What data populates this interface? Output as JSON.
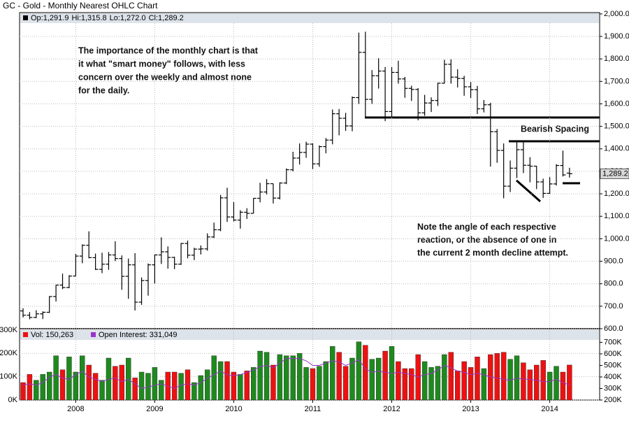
{
  "chart_data": {
    "type": "ohlc",
    "title": "GC - Gold - Monthly Nearest OHLC Chart",
    "legend_labels": [
      "Op:1,291.9",
      "Hi:1,315.8",
      "Lo:1,272.0",
      "Cl:1,289.2"
    ],
    "last_price_label": "1,289.2",
    "categories": [
      null,
      null,
      null,
      null,
      null,
      null,
      null,
      null,
      "2008",
      null,
      null,
      null,
      null,
      null,
      null,
      null,
      null,
      null,
      null,
      null,
      "2009",
      null,
      null,
      null,
      null,
      null,
      null,
      null,
      null,
      null,
      null,
      null,
      "2010",
      null,
      null,
      null,
      null,
      null,
      null,
      null,
      null,
      null,
      null,
      null,
      "2011",
      null,
      null,
      null,
      null,
      null,
      null,
      null,
      null,
      null,
      null,
      null,
      "2012",
      null,
      null,
      null,
      null,
      null,
      null,
      null,
      null,
      null,
      null,
      null,
      "2013",
      null,
      null,
      null,
      null,
      null,
      null,
      null,
      null,
      null,
      null,
      null,
      "2014",
      null,
      null,
      null
    ],
    "ohlc": [
      [
        679,
        691,
        650,
        660
      ],
      [
        660,
        674,
        642,
        650
      ],
      [
        650,
        682,
        647,
        666
      ],
      [
        666,
        677,
        643,
        673
      ],
      [
        673,
        745,
        670,
        743
      ],
      [
        743,
        795,
        721,
        794
      ],
      [
        794,
        845,
        776,
        783
      ],
      [
        783,
        838,
        780,
        834
      ],
      [
        834,
        933,
        834,
        923
      ],
      [
        923,
        975,
        891,
        971
      ],
      [
        971,
        1033,
        913,
        916
      ],
      [
        916,
        934,
        861,
        864
      ],
      [
        864,
        938,
        847,
        887
      ],
      [
        887,
        941,
        862,
        928
      ],
      [
        928,
        989,
        901,
        912
      ],
      [
        912,
        926,
        773,
        833
      ],
      [
        833,
        912,
        733,
        884
      ],
      [
        884,
        936,
        681,
        718
      ],
      [
        718,
        828,
        706,
        814
      ],
      [
        814,
        890,
        747,
        884
      ],
      [
        884,
        930,
        801,
        928
      ],
      [
        928,
        1006,
        888,
        942
      ],
      [
        942,
        966,
        867,
        917
      ],
      [
        917,
        920,
        865,
        887
      ],
      [
        887,
        981,
        884,
        979
      ],
      [
        979,
        992,
        913,
        927
      ],
      [
        927,
        960,
        905,
        954
      ],
      [
        954,
        970,
        930,
        955
      ],
      [
        955,
        1024,
        947,
        1008
      ],
      [
        1008,
        1072,
        1003,
        1040
      ],
      [
        1040,
        1195,
        1034,
        1182
      ],
      [
        1182,
        1227,
        1075,
        1097
      ],
      [
        1097,
        1163,
        1077,
        1083
      ],
      [
        1083,
        1127,
        1045,
        1118
      ],
      [
        1118,
        1136,
        1088,
        1113
      ],
      [
        1113,
        1181,
        1113,
        1180
      ],
      [
        1180,
        1249,
        1162,
        1208
      ],
      [
        1208,
        1265,
        1197,
        1245
      ],
      [
        1245,
        1245,
        1157,
        1181
      ],
      [
        1181,
        1251,
        1175,
        1248
      ],
      [
        1248,
        1313,
        1243,
        1307
      ],
      [
        1307,
        1387,
        1300,
        1359
      ],
      [
        1359,
        1424,
        1330,
        1384
      ],
      [
        1384,
        1432,
        1360,
        1421
      ],
      [
        1421,
        1424,
        1310,
        1333
      ],
      [
        1333,
        1415,
        1320,
        1410
      ],
      [
        1410,
        1448,
        1380,
        1439
      ],
      [
        1439,
        1575,
        1420,
        1556
      ],
      [
        1556,
        1577,
        1460,
        1536
      ],
      [
        1536,
        1560,
        1480,
        1502
      ],
      [
        1502,
        1633,
        1478,
        1628
      ],
      [
        1628,
        1917,
        1600,
        1829
      ],
      [
        1829,
        1921,
        1535,
        1620
      ],
      [
        1620,
        1750,
        1600,
        1725
      ],
      [
        1725,
        1803,
        1668,
        1746
      ],
      [
        1746,
        1764,
        1523,
        1566
      ],
      [
        1566,
        1764,
        1540,
        1740
      ],
      [
        1740,
        1792,
        1690,
        1711
      ],
      [
        1711,
        1720,
        1627,
        1669
      ],
      [
        1669,
        1681,
        1613,
        1664
      ],
      [
        1664,
        1670,
        1527,
        1560
      ],
      [
        1560,
        1640,
        1547,
        1604
      ],
      [
        1604,
        1629,
        1564,
        1615
      ],
      [
        1615,
        1694,
        1591,
        1692
      ],
      [
        1692,
        1796,
        1690,
        1776
      ],
      [
        1776,
        1798,
        1690,
        1719
      ],
      [
        1719,
        1754,
        1673,
        1713
      ],
      [
        1713,
        1725,
        1636,
        1676
      ],
      [
        1676,
        1697,
        1626,
        1663
      ],
      [
        1663,
        1680,
        1555,
        1578
      ],
      [
        1578,
        1617,
        1562,
        1596
      ],
      [
        1596,
        1605,
        1321,
        1476
      ],
      [
        1476,
        1488,
        1338,
        1393
      ],
      [
        1393,
        1424,
        1180,
        1234
      ],
      [
        1234,
        1348,
        1208,
        1314
      ],
      [
        1314,
        1434,
        1270,
        1396
      ],
      [
        1396,
        1434,
        1292,
        1327
      ],
      [
        1327,
        1363,
        1251,
        1323
      ],
      [
        1323,
        1324,
        1221,
        1253
      ],
      [
        1253,
        1267,
        1182,
        1202
      ],
      [
        1202,
        1274,
        1200,
        1244
      ],
      [
        1244,
        1332,
        1237,
        1326
      ],
      [
        1326,
        1392,
        1277,
        1284
      ],
      [
        1291.9,
        1315.8,
        1272.0,
        1289.2
      ]
    ],
    "color": "#000000",
    "ylim": [
      600,
      2006
    ],
    "yticks": [
      {
        "value": 2000,
        "label": "2,000.0"
      },
      {
        "value": 1900,
        "label": "1,900.0"
      },
      {
        "value": 1800,
        "label": "1,800.0"
      },
      {
        "value": 1700,
        "label": "1,700.0"
      },
      {
        "value": 1600,
        "label": "1,600.0"
      },
      {
        "value": 1500,
        "label": "1,500.0"
      },
      {
        "value": 1400,
        "label": "1,400.0"
      },
      {
        "value": 1300,
        "label": "1,300.0"
      },
      {
        "value": 1200,
        "label": "1,200.0"
      },
      {
        "value": 1100,
        "label": "1,100.0"
      },
      {
        "value": 1000,
        "label": "1,000.0"
      },
      {
        "value": 900,
        "label": "900.0"
      },
      {
        "value": 800,
        "label": "800.0"
      },
      {
        "value": 700,
        "label": "700.0"
      },
      {
        "value": 600,
        "label": "600.0"
      }
    ],
    "grid": true,
    "annotations": [
      [
        "The importance of the monthly chart is that",
        "it what \"smart money\" follows, with less",
        "concern over the weekly and almost none",
        "for the daily."
      ],
      [
        "Bearish Spacing"
      ],
      [
        "Note the angle of each respective",
        "reaction, or the absence of one in",
        "the current 2 month decline attempt."
      ]
    ],
    "volume": {
      "legend": "Vol: 150,263",
      "up_color": "#1e8a1e",
      "down_color": "#ee1111",
      "values": [
        75000,
        110000,
        85000,
        110000,
        120000,
        190000,
        130000,
        185000,
        120000,
        190000,
        150000,
        115000,
        85000,
        180000,
        145000,
        150000,
        180000,
        95000,
        120000,
        115000,
        140000,
        85000,
        120000,
        120000,
        115000,
        130000,
        75000,
        105000,
        130000,
        190000,
        165000,
        165000,
        120000,
        110000,
        125000,
        140000,
        210000,
        205000,
        150000,
        195000,
        190000,
        190000,
        200000,
        140000,
        135000,
        145000,
        165000,
        230000,
        205000,
        145000,
        180000,
        250000,
        235000,
        175000,
        180000,
        210000,
        230000,
        165000,
        135000,
        135000,
        195000,
        165000,
        140000,
        145000,
        195000,
        205000,
        125000,
        165000,
        140000,
        185000,
        135000,
        195000,
        200000,
        205000,
        175000,
        190000,
        160000,
        130000,
        150000,
        170000,
        120000,
        145000,
        120000,
        150263
      ],
      "ylim": [
        0,
        300000
      ],
      "yticks": [
        {
          "value": 0,
          "label": "0K"
        },
        {
          "value": 100000,
          "label": "100K"
        },
        {
          "value": 200000,
          "label": "200K"
        },
        {
          "value": 300000,
          "label": "300K"
        }
      ]
    },
    "open_interest": {
      "legend": "Open Interest: 331,049",
      "color": "#9933cc",
      "axis": "y2",
      "values": [
        330000,
        340000,
        330000,
        350000,
        400000,
        420000,
        390000,
        380000,
        420000,
        450000,
        400000,
        380000,
        360000,
        380000,
        390000,
        360000,
        380000,
        340000,
        300000,
        310000,
        330000,
        340000,
        320000,
        300000,
        330000,
        340000,
        330000,
        350000,
        390000,
        420000,
        450000,
        420000,
        410000,
        420000,
        440000,
        460000,
        490000,
        500000,
        480000,
        520000,
        560000,
        560000,
        560000,
        540000,
        500000,
        500000,
        520000,
        540000,
        530000,
        500000,
        520000,
        550000,
        470000,
        440000,
        450000,
        440000,
        430000,
        440000,
        430000,
        420000,
        400000,
        420000,
        430000,
        460000,
        500000,
        480000,
        450000,
        440000,
        420000,
        430000,
        420000,
        400000,
        390000,
        380000,
        370000,
        390000,
        380000,
        380000,
        370000,
        360000,
        360000,
        380000,
        350000,
        331049
      ],
      "y2lim": [
        200000,
        806000
      ],
      "y2ticks": [
        {
          "value": 200000,
          "label": "200K"
        },
        {
          "value": 300000,
          "label": "300K"
        },
        {
          "value": 400000,
          "label": "400K"
        },
        {
          "value": 500000,
          "label": "500K"
        },
        {
          "value": 600000,
          "label": "600K"
        },
        {
          "value": 700000,
          "label": "700K"
        }
      ]
    }
  }
}
